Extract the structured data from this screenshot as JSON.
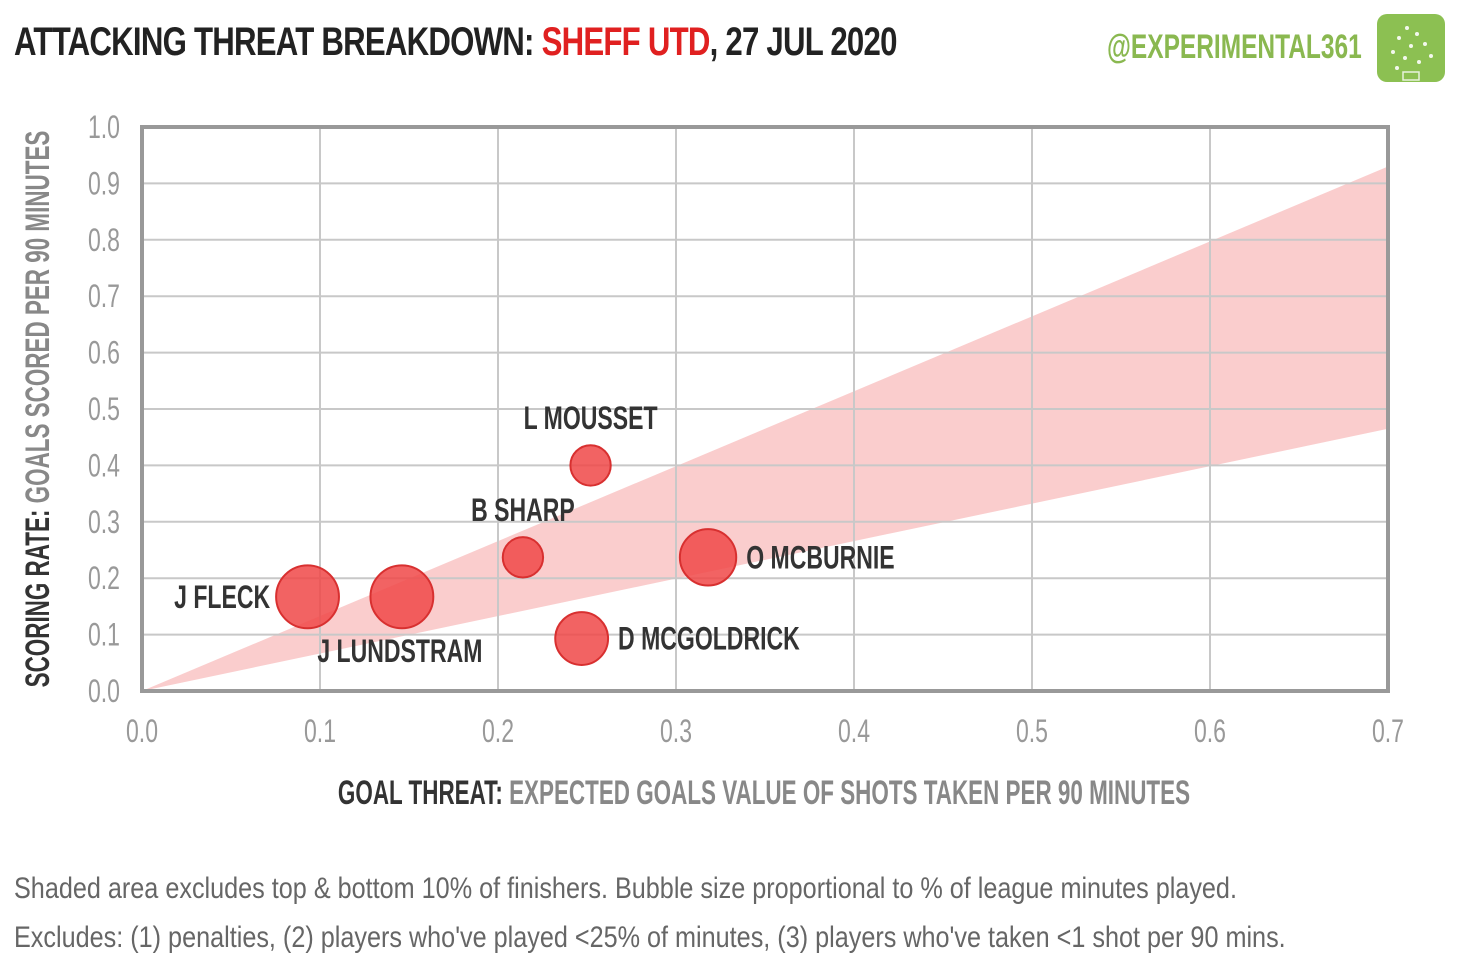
{
  "header": {
    "title_prefix": "ATTACKING THREAT BREAKDOWN:",
    "team": "SHEFF UTD",
    "date": ", 27 JUL 2020",
    "handle": "@EXPERIMENTAL361",
    "logo_icon": "pitch-logo-icon"
  },
  "colors": {
    "accent": "#e02020",
    "bubble": "#f04848",
    "band": "#f9c8c8",
    "handle": "#8ab850"
  },
  "chart_data": {
    "type": "scatter",
    "x_label_bold": "GOAL THREAT:",
    "x_label_rest": "EXPECTED GOALS VALUE OF SHOTS TAKEN PER 90 MINUTES",
    "y_label_bold": "SCORING RATE:",
    "y_label_rest": "GOALS SCORED PER 90 MINUTES",
    "xlim": [
      0,
      0.7
    ],
    "ylim": [
      0,
      1.0
    ],
    "x_ticks": [
      "0.0",
      "0.1",
      "0.2",
      "0.3",
      "0.4",
      "0.5",
      "0.6",
      "0.7"
    ],
    "y_ticks": [
      "0.0",
      "0.1",
      "0.2",
      "0.3",
      "0.4",
      "0.5",
      "0.6",
      "0.7",
      "0.8",
      "0.9",
      "1.0"
    ],
    "grid": true,
    "band": {
      "description": "Shaded range from origin (top and bottom 10% of finishers excluded)",
      "upper_at_xmax": 0.93,
      "lower_at_xmax": 0.465
    },
    "points": [
      {
        "name": "L MOUSSET",
        "x": 0.252,
        "y": 0.4,
        "minutes_share": 0.21,
        "label_pos": "above"
      },
      {
        "name": "B SHARP",
        "x": 0.214,
        "y": 0.237,
        "minutes_share": 0.21,
        "label_pos": "above-left"
      },
      {
        "name": "O MCBURNIE",
        "x": 0.318,
        "y": 0.237,
        "minutes_share": 0.41,
        "label_pos": "right"
      },
      {
        "name": "D MCGOLDRICK",
        "x": 0.247,
        "y": 0.093,
        "minutes_share": 0.36,
        "label_pos": "right"
      },
      {
        "name": "J FLECK",
        "x": 0.093,
        "y": 0.167,
        "minutes_share": 0.51,
        "label_pos": "left"
      },
      {
        "name": "J LUNDSTRAM",
        "x": 0.146,
        "y": 0.167,
        "minutes_share": 0.51,
        "label_pos": "below"
      }
    ]
  },
  "footnotes": {
    "line1": "Shaded area excludes top & bottom  10% of finishers. Bubble size proportional to % of league minutes played.",
    "line2": "Excludes: (1) penalties, (2) players who've played <25% of minutes, (3) players who've taken <1 shot per 90 mins."
  }
}
